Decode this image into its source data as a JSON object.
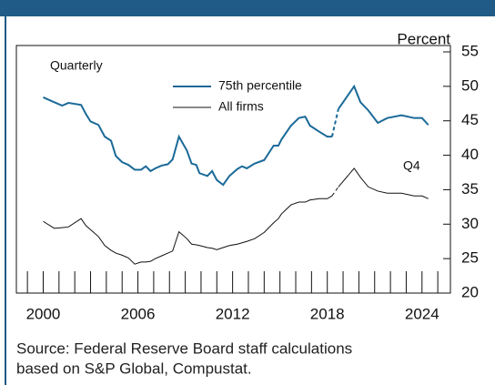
{
  "chart_data": {
    "type": "line",
    "annotations": {
      "unit": "Percent",
      "frequency": "Quarterly",
      "last_point": "Q4"
    },
    "source": [
      "Source: Federal Reserve Board staff calculations",
      "based on S&P Global, Compustat."
    ],
    "x": [
      2000.0,
      2000.7,
      2001.2,
      2001.6,
      2002.4,
      2002.7,
      2003.0,
      2003.5,
      2003.9,
      2004.3,
      2004.6,
      2005.0,
      2005.4,
      2005.8,
      2006.2,
      2006.5,
      2006.8,
      2007.1,
      2007.5,
      2007.9,
      2008.2,
      2008.6,
      2009.1,
      2009.4,
      2009.7,
      2009.9,
      2010.4,
      2010.7,
      2011.0,
      2011.4,
      2011.8,
      2012.3,
      2012.6,
      2012.9,
      2013.4,
      2014.0,
      2014.6,
      2014.9,
      2015.1,
      2015.7,
      2016.2,
      2016.6,
      2016.9,
      2017.5,
      2018.0,
      2018.3,
      2018.5,
      2018.7,
      2019.7,
      2020.1,
      2020.6,
      2021.2,
      2021.8,
      2022.7,
      2023.5,
      2024.0,
      2024.4
    ],
    "series": [
      {
        "name": "75th percentile",
        "color": "#1b6a98",
        "values": [
          48.4,
          47.7,
          47.2,
          47.6,
          47.3,
          46.0,
          44.9,
          44.4,
          42.7,
          42.1,
          39.9,
          39.0,
          38.6,
          37.9,
          37.9,
          38.4,
          37.7,
          38.1,
          38.5,
          38.7,
          39.4,
          42.7,
          40.7,
          38.8,
          38.6,
          37.4,
          37.0,
          37.7,
          36.4,
          35.7,
          37.0,
          38.0,
          38.4,
          38.1,
          38.8,
          39.3,
          41.4,
          41.4,
          42.3,
          44.3,
          45.4,
          45.6,
          44.3,
          43.4,
          42.7,
          42.7,
          null,
          46.7,
          50.0,
          47.7,
          46.5,
          44.7,
          45.4,
          45.8,
          45.4,
          45.4,
          44.4
        ]
      },
      {
        "name": "All firms",
        "color": "#111111",
        "values": [
          30.4,
          29.4,
          29.5,
          29.6,
          30.8,
          29.8,
          29.2,
          28.2,
          26.9,
          26.2,
          25.8,
          25.5,
          25.1,
          24.2,
          24.5,
          24.5,
          24.6,
          25.0,
          25.4,
          25.8,
          26.1,
          28.9,
          27.9,
          27.1,
          27.0,
          26.9,
          26.6,
          26.5,
          26.3,
          26.6,
          26.9,
          27.1,
          27.3,
          27.5,
          27.9,
          28.8,
          30.2,
          30.8,
          31.5,
          32.8,
          33.2,
          33.2,
          33.5,
          33.7,
          33.7,
          34.1,
          null,
          35.4,
          38.1,
          36.8,
          35.4,
          34.8,
          34.5,
          34.5,
          34.1,
          34.1,
          33.7
        ]
      }
    ],
    "xlim": [
      1998.3,
      2025.8
    ],
    "xticks": [
      2000,
      2006,
      2012,
      2018,
      2024
    ],
    "xminorticks": [
      1999,
      2000,
      2001,
      2002,
      2003,
      2004,
      2005,
      2006,
      2007,
      2008,
      2009,
      2010,
      2011,
      2012,
      2013,
      2014,
      2015,
      2016,
      2017,
      2018,
      2019,
      2020,
      2021,
      2022,
      2023,
      2024,
      2025
    ],
    "ylim": [
      20,
      55
    ],
    "yticks": [
      20,
      25,
      30,
      35,
      40,
      45,
      50,
      55
    ],
    "y_axis_side": "right"
  }
}
